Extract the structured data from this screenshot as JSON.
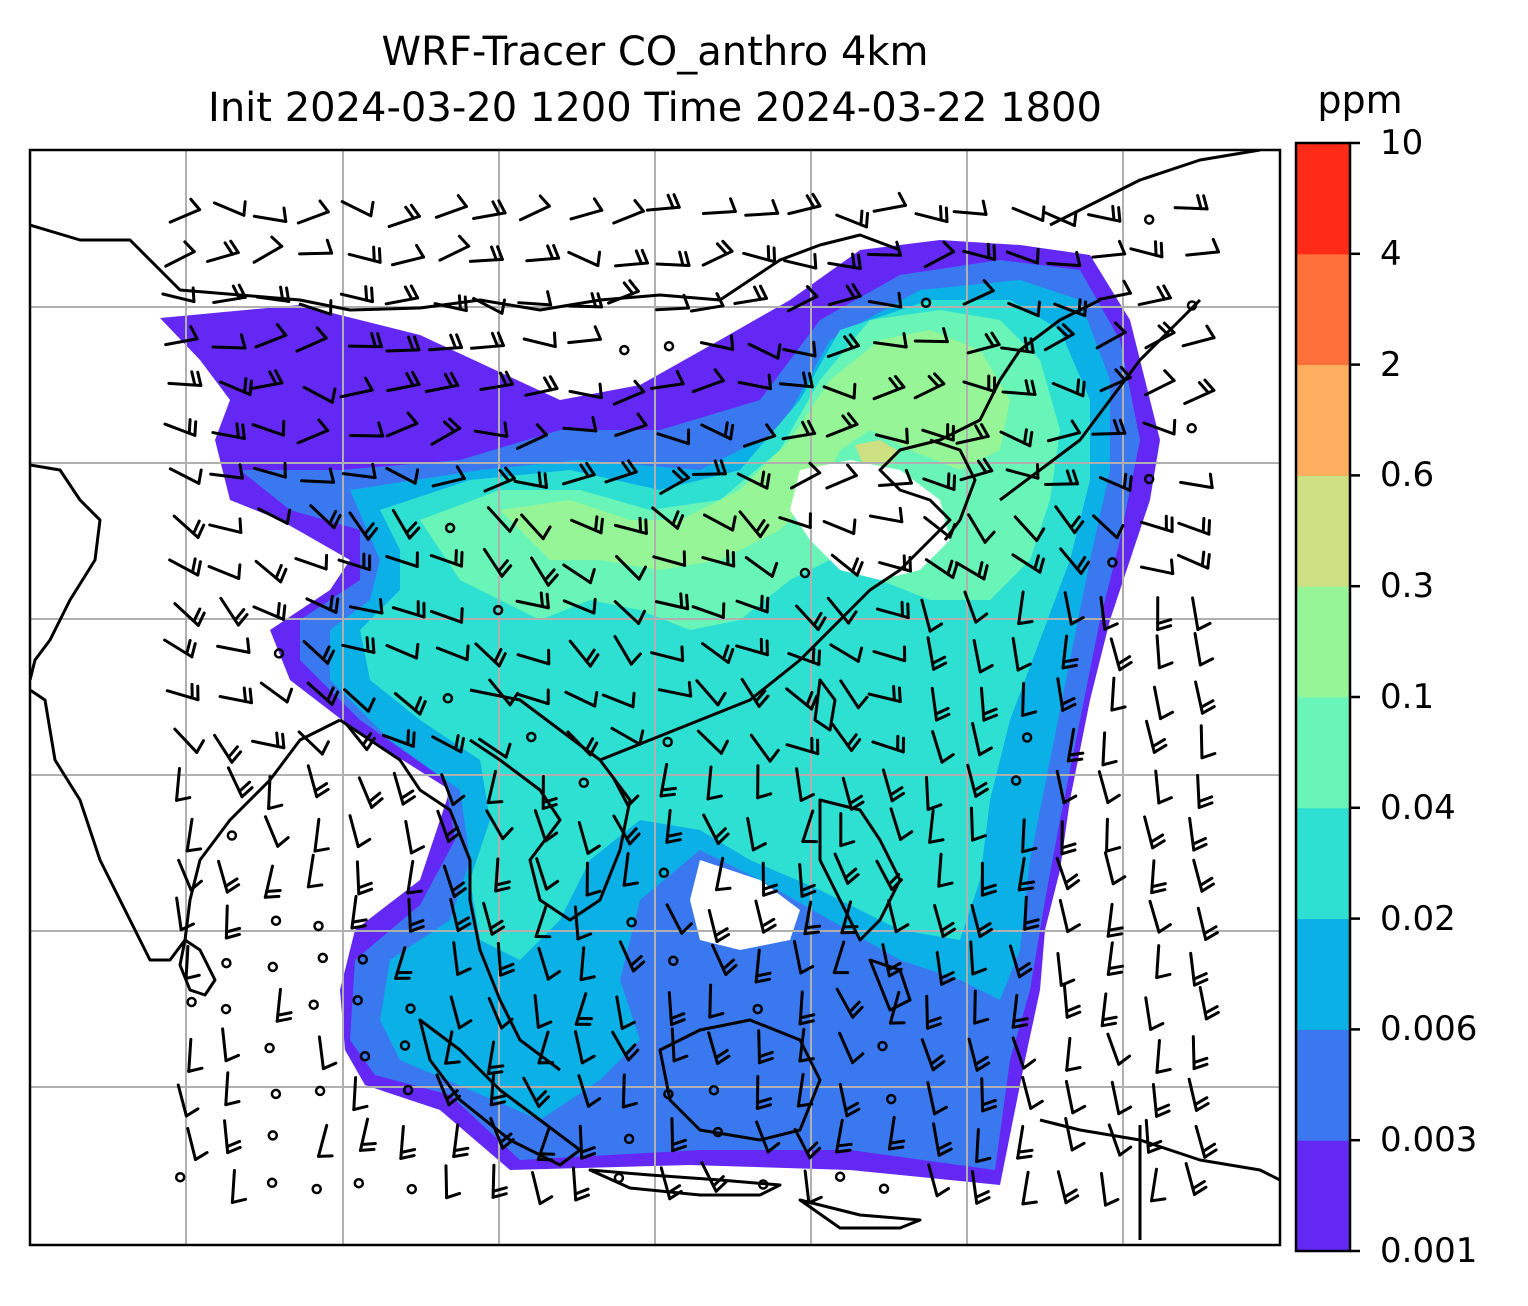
{
  "map": {
    "title_line1": "WRF-Tracer CO_anthro 4km",
    "title_line2": "Init 2024-03-20 1200 Time 2024-03-22 1800",
    "field_colors": {
      "0.001": "#6428f5",
      "0.003": "#3a78f0",
      "0.006": "#0ab0e6",
      "0.02": "#2ee0d2",
      "0.04": "#6af5b8",
      "0.1": "#96f596",
      "0.3": "#cde082",
      "0.6": "#fdae5e",
      "2": "#ff703a",
      "4": "#ff2b18"
    },
    "coastline_color": "#000000",
    "gridline_color": "#b0b0b0",
    "barb_color": "#000000"
  },
  "colorbar": {
    "unit": "ppm",
    "levels": [
      "0.001",
      "0.003",
      "0.006",
      "0.02",
      "0.04",
      "0.1",
      "0.3",
      "0.6",
      "2",
      "4",
      "10"
    ],
    "colors": [
      "#6428f5",
      "#3a78f0",
      "#0ab0e6",
      "#2ee0d2",
      "#6af5b8",
      "#96f596",
      "#cde082",
      "#fdae5e",
      "#ff703a",
      "#ff2b18"
    ]
  }
}
